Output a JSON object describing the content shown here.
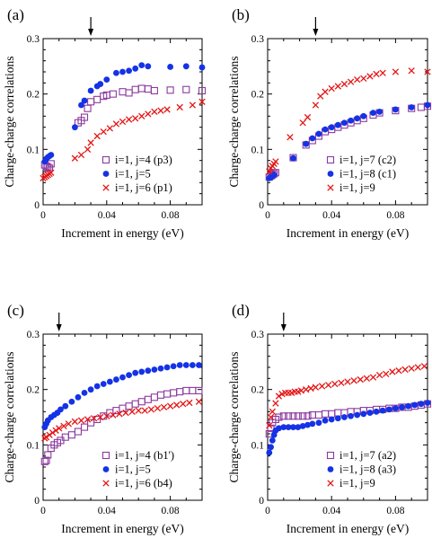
{
  "colors": {
    "purple": "#8B3A9E",
    "blue": "#1432E6",
    "red": "#E51414",
    "axis": "#000000"
  },
  "chart_data": [
    {
      "panel": "(a)",
      "type": "scatter",
      "xlabel": "Increment in energy (eV)",
      "ylabel": "Charge-charge correlations",
      "xlim": [
        0,
        0.1
      ],
      "ylim": [
        0,
        0.3
      ],
      "xticks": [
        "0",
        "0.04",
        "0.08"
      ],
      "yticks": [
        "0",
        "0.1",
        "0.2",
        "0.3"
      ],
      "arrow_x": 0.03,
      "legend_position": "lower-right",
      "series": [
        {
          "name": "i=1, j=4 (p3)",
          "marker": "square",
          "color": "#8B3A9E",
          "x": [
            0.001,
            0.002,
            0.003,
            0.004,
            0.005,
            0.022,
            0.024,
            0.026,
            0.028,
            0.03,
            0.034,
            0.038,
            0.04,
            0.044,
            0.05,
            0.054,
            0.058,
            0.062,
            0.066,
            0.07,
            0.08,
            0.09,
            0.1
          ],
          "y": [
            0.072,
            0.07,
            0.068,
            0.066,
            0.074,
            0.148,
            0.152,
            0.158,
            0.174,
            0.186,
            0.19,
            0.196,
            0.198,
            0.2,
            0.204,
            0.202,
            0.208,
            0.21,
            0.209,
            0.206,
            0.207,
            0.208,
            0.206
          ]
        },
        {
          "name": "i=1, j=5",
          "marker": "circle",
          "color": "#1432E6",
          "x": [
            0.001,
            0.002,
            0.003,
            0.004,
            0.005,
            0.02,
            0.024,
            0.026,
            0.03,
            0.034,
            0.036,
            0.04,
            0.046,
            0.05,
            0.054,
            0.058,
            0.062,
            0.066,
            0.08,
            0.09,
            0.1
          ],
          "y": [
            0.078,
            0.083,
            0.086,
            0.088,
            0.09,
            0.14,
            0.18,
            0.188,
            0.206,
            0.214,
            0.218,
            0.226,
            0.238,
            0.24,
            0.242,
            0.246,
            0.252,
            0.25,
            0.249,
            0.25,
            0.248
          ]
        },
        {
          "name": "i=1, j=6 (p1)",
          "marker": "cross",
          "color": "#E51414",
          "x": [
            0.0,
            0.001,
            0.002,
            0.003,
            0.004,
            0.005,
            0.02,
            0.024,
            0.028,
            0.03,
            0.034,
            0.038,
            0.042,
            0.046,
            0.05,
            0.054,
            0.058,
            0.062,
            0.066,
            0.07,
            0.074,
            0.078,
            0.086,
            0.094,
            0.1
          ],
          "y": [
            0.048,
            0.05,
            0.052,
            0.054,
            0.056,
            0.058,
            0.084,
            0.09,
            0.1,
            0.112,
            0.124,
            0.132,
            0.138,
            0.146,
            0.15,
            0.154,
            0.156,
            0.16,
            0.164,
            0.168,
            0.17,
            0.172,
            0.176,
            0.18,
            0.186
          ]
        }
      ]
    },
    {
      "panel": "(b)",
      "type": "scatter",
      "xlabel": "Increment in energy (eV)",
      "ylabel": "Charge-charge correlations",
      "xlim": [
        0,
        0.1
      ],
      "ylim": [
        0,
        0.3
      ],
      "xticks": [
        "0",
        "0.04",
        "0.08"
      ],
      "yticks": [
        "0",
        "0.1",
        "0.2",
        "0.3"
      ],
      "arrow_x": 0.03,
      "legend_position": "lower-right",
      "series": [
        {
          "name": "i=1, j=7 (c2)",
          "marker": "square",
          "color": "#8B3A9E",
          "x": [
            0.001,
            0.002,
            0.003,
            0.004,
            0.005,
            0.016,
            0.024,
            0.028,
            0.032,
            0.036,
            0.04,
            0.044,
            0.048,
            0.052,
            0.056,
            0.06,
            0.066,
            0.07,
            0.08,
            0.09,
            0.096,
            0.1
          ],
          "y": [
            0.05,
            0.052,
            0.054,
            0.056,
            0.058,
            0.085,
            0.108,
            0.116,
            0.124,
            0.132,
            0.136,
            0.14,
            0.144,
            0.148,
            0.152,
            0.156,
            0.162,
            0.166,
            0.17,
            0.174,
            0.176,
            0.178
          ]
        },
        {
          "name": "i=1, j=8 (c1)",
          "marker": "circle",
          "color": "#1432E6",
          "x": [
            0.001,
            0.002,
            0.003,
            0.004,
            0.016,
            0.024,
            0.028,
            0.032,
            0.036,
            0.04,
            0.044,
            0.048,
            0.052,
            0.056,
            0.06,
            0.066,
            0.07,
            0.08,
            0.09,
            0.1
          ],
          "y": [
            0.048,
            0.05,
            0.052,
            0.054,
            0.084,
            0.11,
            0.12,
            0.128,
            0.136,
            0.14,
            0.144,
            0.148,
            0.152,
            0.156,
            0.16,
            0.166,
            0.168,
            0.172,
            0.176,
            0.18
          ]
        },
        {
          "name": "i=1, j=9",
          "marker": "cross",
          "color": "#E51414",
          "x": [
            0.001,
            0.002,
            0.003,
            0.004,
            0.005,
            0.014,
            0.022,
            0.025,
            0.03,
            0.033,
            0.036,
            0.04,
            0.044,
            0.048,
            0.052,
            0.056,
            0.06,
            0.064,
            0.068,
            0.072,
            0.08,
            0.09,
            0.1
          ],
          "y": [
            0.06,
            0.066,
            0.07,
            0.074,
            0.078,
            0.122,
            0.148,
            0.158,
            0.18,
            0.196,
            0.204,
            0.21,
            0.214,
            0.218,
            0.222,
            0.226,
            0.228,
            0.232,
            0.236,
            0.238,
            0.24,
            0.242,
            0.24
          ]
        }
      ]
    },
    {
      "panel": "(c)",
      "type": "scatter",
      "xlabel": "Increment in energy (eV)",
      "ylabel": "Charge-charge correlations",
      "xlim": [
        0,
        0.1
      ],
      "ylim": [
        0,
        0.3
      ],
      "xticks": [
        "0",
        "0.04",
        "0.08"
      ],
      "yticks": [
        "0",
        "0.1",
        "0.2",
        "0.3"
      ],
      "arrow_x": 0.01,
      "legend_position": "lower-right",
      "series": [
        {
          "name": "i=1, j=4 (b1')",
          "marker": "square",
          "color": "#8B3A9E",
          "x": [
            0.001,
            0.002,
            0.003,
            0.005,
            0.007,
            0.009,
            0.011,
            0.014,
            0.018,
            0.022,
            0.026,
            0.03,
            0.034,
            0.038,
            0.042,
            0.046,
            0.05,
            0.054,
            0.058,
            0.062,
            0.066,
            0.07,
            0.074,
            0.078,
            0.082,
            0.086,
            0.09,
            0.094,
            0.098
          ],
          "y": [
            0.07,
            0.072,
            0.082,
            0.094,
            0.1,
            0.104,
            0.108,
            0.114,
            0.118,
            0.124,
            0.132,
            0.14,
            0.146,
            0.152,
            0.158,
            0.162,
            0.166,
            0.17,
            0.174,
            0.178,
            0.182,
            0.186,
            0.19,
            0.192,
            0.194,
            0.196,
            0.198,
            0.198,
            0.198
          ]
        },
        {
          "name": "i=1, j=5",
          "marker": "circle",
          "color": "#1432E6",
          "x": [
            0.001,
            0.002,
            0.003,
            0.005,
            0.007,
            0.009,
            0.011,
            0.014,
            0.018,
            0.022,
            0.026,
            0.03,
            0.034,
            0.038,
            0.042,
            0.046,
            0.05,
            0.054,
            0.058,
            0.062,
            0.066,
            0.07,
            0.074,
            0.078,
            0.082,
            0.086,
            0.09,
            0.094,
            0.098
          ],
          "y": [
            0.132,
            0.138,
            0.144,
            0.15,
            0.154,
            0.158,
            0.164,
            0.17,
            0.178,
            0.186,
            0.194,
            0.2,
            0.206,
            0.21,
            0.214,
            0.218,
            0.222,
            0.226,
            0.23,
            0.232,
            0.234,
            0.236,
            0.238,
            0.24,
            0.242,
            0.244,
            0.244,
            0.244,
            0.244
          ]
        },
        {
          "name": "i=1, j=6 (b4)",
          "marker": "cross",
          "color": "#E51414",
          "x": [
            0.001,
            0.002,
            0.004,
            0.006,
            0.008,
            0.01,
            0.013,
            0.016,
            0.02,
            0.024,
            0.028,
            0.032,
            0.036,
            0.04,
            0.044,
            0.048,
            0.052,
            0.056,
            0.06,
            0.064,
            0.068,
            0.072,
            0.076,
            0.08,
            0.084,
            0.088,
            0.092,
            0.098
          ],
          "y": [
            0.112,
            0.114,
            0.118,
            0.122,
            0.126,
            0.13,
            0.134,
            0.138,
            0.142,
            0.144,
            0.146,
            0.148,
            0.15,
            0.152,
            0.154,
            0.156,
            0.158,
            0.16,
            0.162,
            0.162,
            0.164,
            0.166,
            0.168,
            0.17,
            0.172,
            0.174,
            0.176,
            0.178
          ]
        }
      ]
    },
    {
      "panel": "(d)",
      "type": "scatter",
      "xlabel": "Increment in energy (eV)",
      "ylabel": "Charge-charge correlations",
      "xlim": [
        0,
        0.1
      ],
      "ylim": [
        0,
        0.3
      ],
      "xticks": [
        "0",
        "0.04",
        "0.08"
      ],
      "yticks": [
        "0",
        "0.1",
        "0.2",
        "0.3"
      ],
      "arrow_x": 0.01,
      "legend_position": "lower-right",
      "series": [
        {
          "name": "i=1, j=7 (a2)",
          "marker": "square",
          "color": "#8B3A9E",
          "x": [
            0.001,
            0.002,
            0.003,
            0.005,
            0.007,
            0.01,
            0.013,
            0.016,
            0.019,
            0.022,
            0.025,
            0.028,
            0.032,
            0.036,
            0.04,
            0.044,
            0.048,
            0.052,
            0.056,
            0.06,
            0.064,
            0.068,
            0.072,
            0.076,
            0.08,
            0.084,
            0.088,
            0.092,
            0.096,
            0.1
          ],
          "y": [
            0.12,
            0.13,
            0.14,
            0.146,
            0.15,
            0.152,
            0.152,
            0.152,
            0.152,
            0.152,
            0.152,
            0.154,
            0.154,
            0.156,
            0.156,
            0.158,
            0.158,
            0.16,
            0.16,
            0.162,
            0.162,
            0.164,
            0.164,
            0.166,
            0.166,
            0.168,
            0.168,
            0.17,
            0.172,
            0.174
          ]
        },
        {
          "name": "i=1, j=8 (a3)",
          "marker": "circle",
          "color": "#1432E6",
          "x": [
            0.001,
            0.002,
            0.003,
            0.004,
            0.005,
            0.007,
            0.01,
            0.013,
            0.016,
            0.019,
            0.022,
            0.025,
            0.028,
            0.032,
            0.036,
            0.04,
            0.044,
            0.048,
            0.052,
            0.056,
            0.06,
            0.064,
            0.068,
            0.072,
            0.076,
            0.08,
            0.084,
            0.088,
            0.092,
            0.096,
            0.1
          ],
          "y": [
            0.086,
            0.096,
            0.108,
            0.118,
            0.126,
            0.13,
            0.132,
            0.132,
            0.132,
            0.132,
            0.134,
            0.136,
            0.138,
            0.14,
            0.144,
            0.146,
            0.148,
            0.15,
            0.152,
            0.154,
            0.156,
            0.158,
            0.16,
            0.162,
            0.164,
            0.166,
            0.168,
            0.17,
            0.172,
            0.174,
            0.176
          ]
        },
        {
          "name": "i=1, j=9",
          "marker": "cross",
          "color": "#E51414",
          "x": [
            0.001,
            0.002,
            0.003,
            0.005,
            0.007,
            0.009,
            0.011,
            0.013,
            0.015,
            0.017,
            0.019,
            0.021,
            0.024,
            0.027,
            0.03,
            0.034,
            0.038,
            0.042,
            0.046,
            0.05,
            0.054,
            0.058,
            0.062,
            0.066,
            0.07,
            0.074,
            0.078,
            0.082,
            0.086,
            0.09,
            0.094,
            0.098
          ],
          "y": [
            0.135,
            0.15,
            0.16,
            0.175,
            0.188,
            0.192,
            0.194,
            0.194,
            0.194,
            0.196,
            0.196,
            0.198,
            0.2,
            0.202,
            0.204,
            0.206,
            0.208,
            0.21,
            0.212,
            0.214,
            0.216,
            0.218,
            0.22,
            0.222,
            0.226,
            0.228,
            0.232,
            0.234,
            0.236,
            0.238,
            0.24,
            0.242
          ]
        }
      ]
    }
  ]
}
